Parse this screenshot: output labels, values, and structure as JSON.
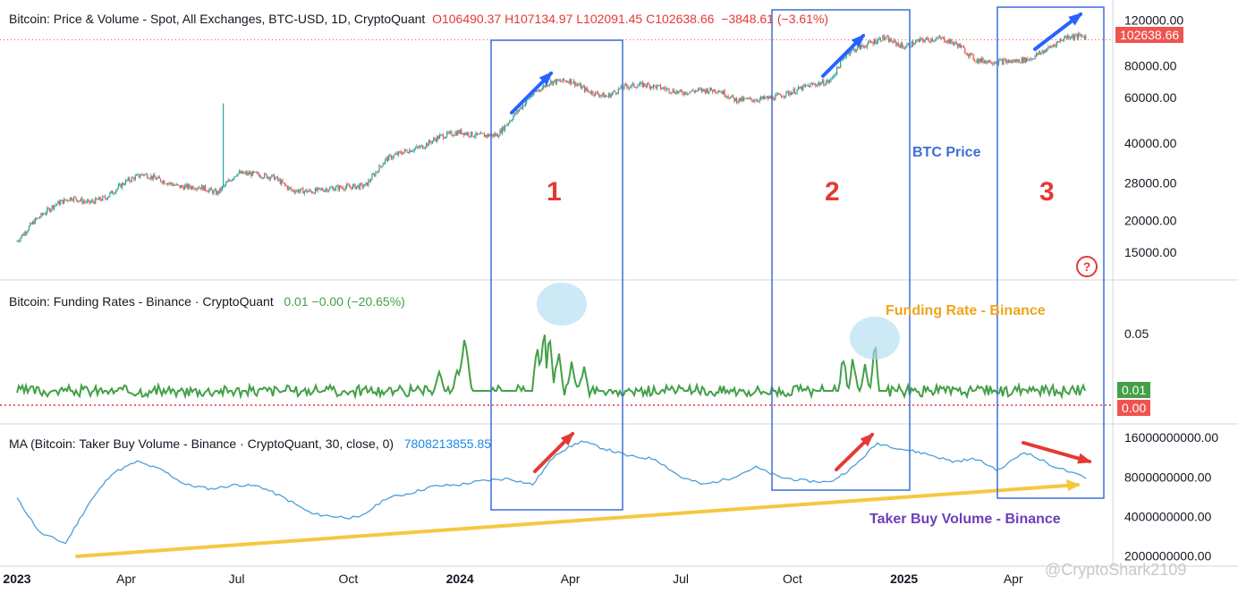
{
  "panels": {
    "price": {
      "legend": "Bitcoin: Price & Volume - Spot, All Exchanges, BTC-USD, 1D, CryptoQuant",
      "ohlc": {
        "open": "O106490.37",
        "high": "H107134.97",
        "low": "L102091.45",
        "close": "C102638.66",
        "change": "−3848.61 (−3.61%)"
      },
      "last_price_tag": "102638.66",
      "annotation": "BTC Price"
    },
    "funding": {
      "legend": "Bitcoin: Funding Rates - Binance · CryptoQuant",
      "values": "0.01  −0.00 (−20.65%)",
      "tag_current": "0.01",
      "tag_zero": "0.00",
      "annotation": "Funding Rate - Binance"
    },
    "taker": {
      "legend": "MA (Bitcoin: Taker Buy Volume - Binance · CryptoQuant, 30, close, 0)",
      "value": "7808213855.85",
      "annotation": "Taker Buy Volume - Binance"
    }
  },
  "boxes": [
    "1",
    "2",
    "3"
  ],
  "help_icon": "question-mark-icon",
  "watermark": "@CryptoShark2109",
  "colors": {
    "up": "#26a69a",
    "down": "#ef5350",
    "funding": "#43a047",
    "taker": "#4a9fd8",
    "box": "#3d6fd8",
    "trend": "#f5c842",
    "arrow_blue": "#2962ff",
    "arrow_red": "#e53935"
  },
  "chart_data": {
    "type": "line",
    "x_ticks": [
      "2023",
      "Apr",
      "Jul",
      "Oct",
      "2024",
      "Apr",
      "Jul",
      "Oct",
      "2025",
      "Apr"
    ],
    "series": [
      {
        "name": "BTC Price",
        "scale": "log",
        "y_ticks": [
          120000,
          80000,
          60000,
          40000,
          28000,
          20000,
          15000
        ],
        "x": [
          "2023-01-01",
          "2023-01-15",
          "2023-02-01",
          "2023-02-15",
          "2023-03-01",
          "2023-03-15",
          "2023-04-01",
          "2023-04-15",
          "2023-05-01",
          "2023-05-15",
          "2023-06-01",
          "2023-06-15",
          "2023-07-01",
          "2023-07-15",
          "2023-08-01",
          "2023-08-15",
          "2023-09-01",
          "2023-09-15",
          "2023-10-01",
          "2023-10-15",
          "2023-11-01",
          "2023-11-15",
          "2023-12-01",
          "2023-12-15",
          "2024-01-01",
          "2024-01-15",
          "2024-02-01",
          "2024-02-15",
          "2024-03-01",
          "2024-03-15",
          "2024-04-01",
          "2024-04-15",
          "2024-05-01",
          "2024-05-15",
          "2024-06-01",
          "2024-06-15",
          "2024-07-01",
          "2024-07-15",
          "2024-08-01",
          "2024-08-15",
          "2024-09-01",
          "2024-09-15",
          "2024-10-01",
          "2024-10-15",
          "2024-11-01",
          "2024-11-15",
          "2024-12-01",
          "2024-12-15",
          "2025-01-01",
          "2025-01-15",
          "2025-02-01",
          "2025-02-15",
          "2025-03-01",
          "2025-03-15",
          "2025-04-01",
          "2025-04-15",
          "2025-05-01",
          "2025-05-15",
          "2025-05-31"
        ],
        "values": [
          16600,
          19800,
          23000,
          24500,
          23400,
          24500,
          28400,
          30300,
          28500,
          27000,
          27000,
          25500,
          30500,
          30300,
          29400,
          26200,
          25900,
          26600,
          27000,
          27200,
          34600,
          36900,
          38700,
          42300,
          44200,
          42700,
          43000,
          51500,
          62000,
          69000,
          70000,
          63800,
          60600,
          66200,
          67500,
          65500,
          62700,
          64000,
          64300,
          58800,
          59000,
          60000,
          63300,
          67000,
          69500,
          90000,
          96400,
          103000,
          94400,
          100500,
          102000,
          96000,
          84000,
          83000,
          83000,
          85000,
          94000,
          104000,
          104000
        ]
      },
      {
        "name": "Funding Rate - Binance",
        "y_ticks": [
          0.05
        ],
        "current": 0.01
      },
      {
        "name": "Taker Buy Volume - Binance",
        "y_ticks": [
          16000000000,
          8000000000,
          4000000000,
          2000000000
        ],
        "x": [
          "2023-01-01",
          "2023-01-20",
          "2023-02-10",
          "2023-03-01",
          "2023-03-20",
          "2023-04-10",
          "2023-05-01",
          "2023-05-20",
          "2023-06-10",
          "2023-07-01",
          "2023-07-20",
          "2023-08-10",
          "2023-09-01",
          "2023-09-20",
          "2023-10-10",
          "2023-11-01",
          "2023-11-20",
          "2023-12-10",
          "2024-01-01",
          "2024-01-20",
          "2024-02-10",
          "2024-03-01",
          "2024-03-20",
          "2024-04-10",
          "2024-05-01",
          "2024-05-20",
          "2024-06-10",
          "2024-07-01",
          "2024-07-20",
          "2024-08-10",
          "2024-09-01",
          "2024-09-20",
          "2024-10-10",
          "2024-11-01",
          "2024-11-20",
          "2024-12-10",
          "2025-01-01",
          "2025-01-20",
          "2025-02-10",
          "2025-03-01",
          "2025-03-20",
          "2025-04-10",
          "2025-05-01",
          "2025-05-31"
        ],
        "values": [
          5500000000,
          3000000000,
          2500000000,
          5000000000,
          8500000000,
          10500000000,
          9000000000,
          7000000000,
          6500000000,
          7000000000,
          6800000000,
          5500000000,
          4200000000,
          4000000000,
          3900000000,
          5500000000,
          6000000000,
          6800000000,
          7000000000,
          7500000000,
          7800000000,
          7000000000,
          12000000000,
          15000000000,
          13000000000,
          11500000000,
          11000000000,
          8000000000,
          7000000000,
          7800000000,
          9500000000,
          8000000000,
          7500000000,
          7300000000,
          9500000000,
          14500000000,
          13000000000,
          12000000000,
          10500000000,
          11000000000,
          9000000000,
          12500000000,
          10000000000,
          7800000000
        ]
      }
    ]
  }
}
